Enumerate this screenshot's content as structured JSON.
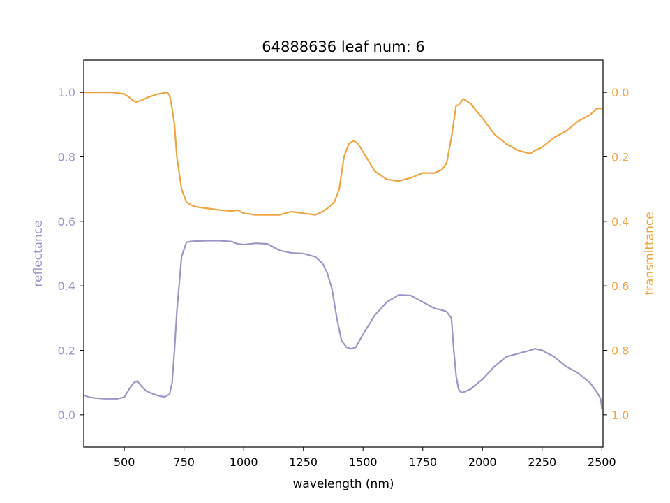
{
  "chart_data": {
    "type": "line",
    "title": "64888636 leaf num: 6",
    "xlabel": "wavelength (nm)",
    "ylabel_left": "reflectance",
    "ylabel_right": "transmittance",
    "xlim": [
      330,
      2505
    ],
    "ylim_left": [
      -0.1,
      1.1
    ],
    "ylim_right": [
      1.1,
      -0.1
    ],
    "right_axis_inverted": true,
    "grid": false,
    "x_ticks": [
      500,
      750,
      1000,
      1250,
      1500,
      1750,
      2000,
      2250,
      2500
    ],
    "y_ticks_left": [
      0.0,
      0.2,
      0.4,
      0.6,
      0.8,
      1.0
    ],
    "y_ticks_right": [
      0.0,
      0.2,
      0.4,
      0.6,
      0.8,
      1.0
    ],
    "colors": {
      "reflectance": "#9b96c8",
      "transmittance": "#efa440",
      "axes": "#000000"
    },
    "series": [
      {
        "name": "reflectance",
        "axis": "left",
        "x": [
          335,
          350,
          380,
          420,
          470,
          500,
          520,
          540,
          555,
          570,
          590,
          620,
          650,
          670,
          690,
          700,
          710,
          720,
          740,
          760,
          780,
          800,
          850,
          900,
          950,
          975,
          1000,
          1050,
          1100,
          1150,
          1200,
          1250,
          1300,
          1330,
          1350,
          1370,
          1390,
          1410,
          1430,
          1450,
          1470,
          1500,
          1550,
          1600,
          1650,
          1700,
          1750,
          1800,
          1830,
          1850,
          1870,
          1880,
          1890,
          1900,
          1910,
          1920,
          1950,
          2000,
          2050,
          2100,
          2150,
          2200,
          2220,
          2250,
          2300,
          2350,
          2400,
          2450,
          2480,
          2495,
          2500
        ],
        "values": [
          0.06,
          0.055,
          0.052,
          0.05,
          0.05,
          0.055,
          0.08,
          0.1,
          0.105,
          0.09,
          0.075,
          0.065,
          0.058,
          0.056,
          0.065,
          0.1,
          0.2,
          0.32,
          0.49,
          0.535,
          0.538,
          0.539,
          0.54,
          0.54,
          0.537,
          0.53,
          0.528,
          0.532,
          0.53,
          0.51,
          0.502,
          0.5,
          0.49,
          0.47,
          0.44,
          0.39,
          0.3,
          0.23,
          0.21,
          0.205,
          0.21,
          0.25,
          0.31,
          0.35,
          0.372,
          0.37,
          0.35,
          0.33,
          0.325,
          0.32,
          0.3,
          0.2,
          0.12,
          0.08,
          0.07,
          0.07,
          0.08,
          0.11,
          0.15,
          0.18,
          0.19,
          0.2,
          0.205,
          0.2,
          0.18,
          0.15,
          0.13,
          0.1,
          0.07,
          0.05,
          0.02
        ]
      },
      {
        "name": "transmittance",
        "axis": "right",
        "x": [
          335,
          350,
          400,
          450,
          500,
          520,
          535,
          550,
          570,
          600,
          640,
          680,
          690,
          700,
          710,
          720,
          740,
          760,
          780,
          800,
          850,
          900,
          950,
          975,
          1000,
          1050,
          1100,
          1150,
          1200,
          1250,
          1300,
          1330,
          1350,
          1380,
          1400,
          1420,
          1440,
          1460,
          1480,
          1500,
          1550,
          1600,
          1650,
          1700,
          1750,
          1800,
          1830,
          1850,
          1870,
          1880,
          1890,
          1900,
          1910,
          1920,
          1950,
          2000,
          2050,
          2100,
          2150,
          2200,
          2220,
          2250,
          2300,
          2350,
          2400,
          2450,
          2480,
          2500
        ],
        "values": [
          0.0,
          0.0,
          0.0,
          0.0,
          0.005,
          0.015,
          0.025,
          0.03,
          0.025,
          0.015,
          0.005,
          0.0,
          0.01,
          0.05,
          0.1,
          0.2,
          0.3,
          0.34,
          0.35,
          0.355,
          0.36,
          0.365,
          0.368,
          0.365,
          0.375,
          0.38,
          0.38,
          0.38,
          0.37,
          0.375,
          0.38,
          0.37,
          0.36,
          0.34,
          0.3,
          0.2,
          0.16,
          0.15,
          0.16,
          0.185,
          0.245,
          0.27,
          0.275,
          0.265,
          0.25,
          0.25,
          0.24,
          0.22,
          0.14,
          0.09,
          0.04,
          0.04,
          0.03,
          0.02,
          0.035,
          0.08,
          0.13,
          0.16,
          0.18,
          0.19,
          0.18,
          0.17,
          0.14,
          0.12,
          0.09,
          0.07,
          0.05,
          0.05
        ]
      }
    ]
  }
}
